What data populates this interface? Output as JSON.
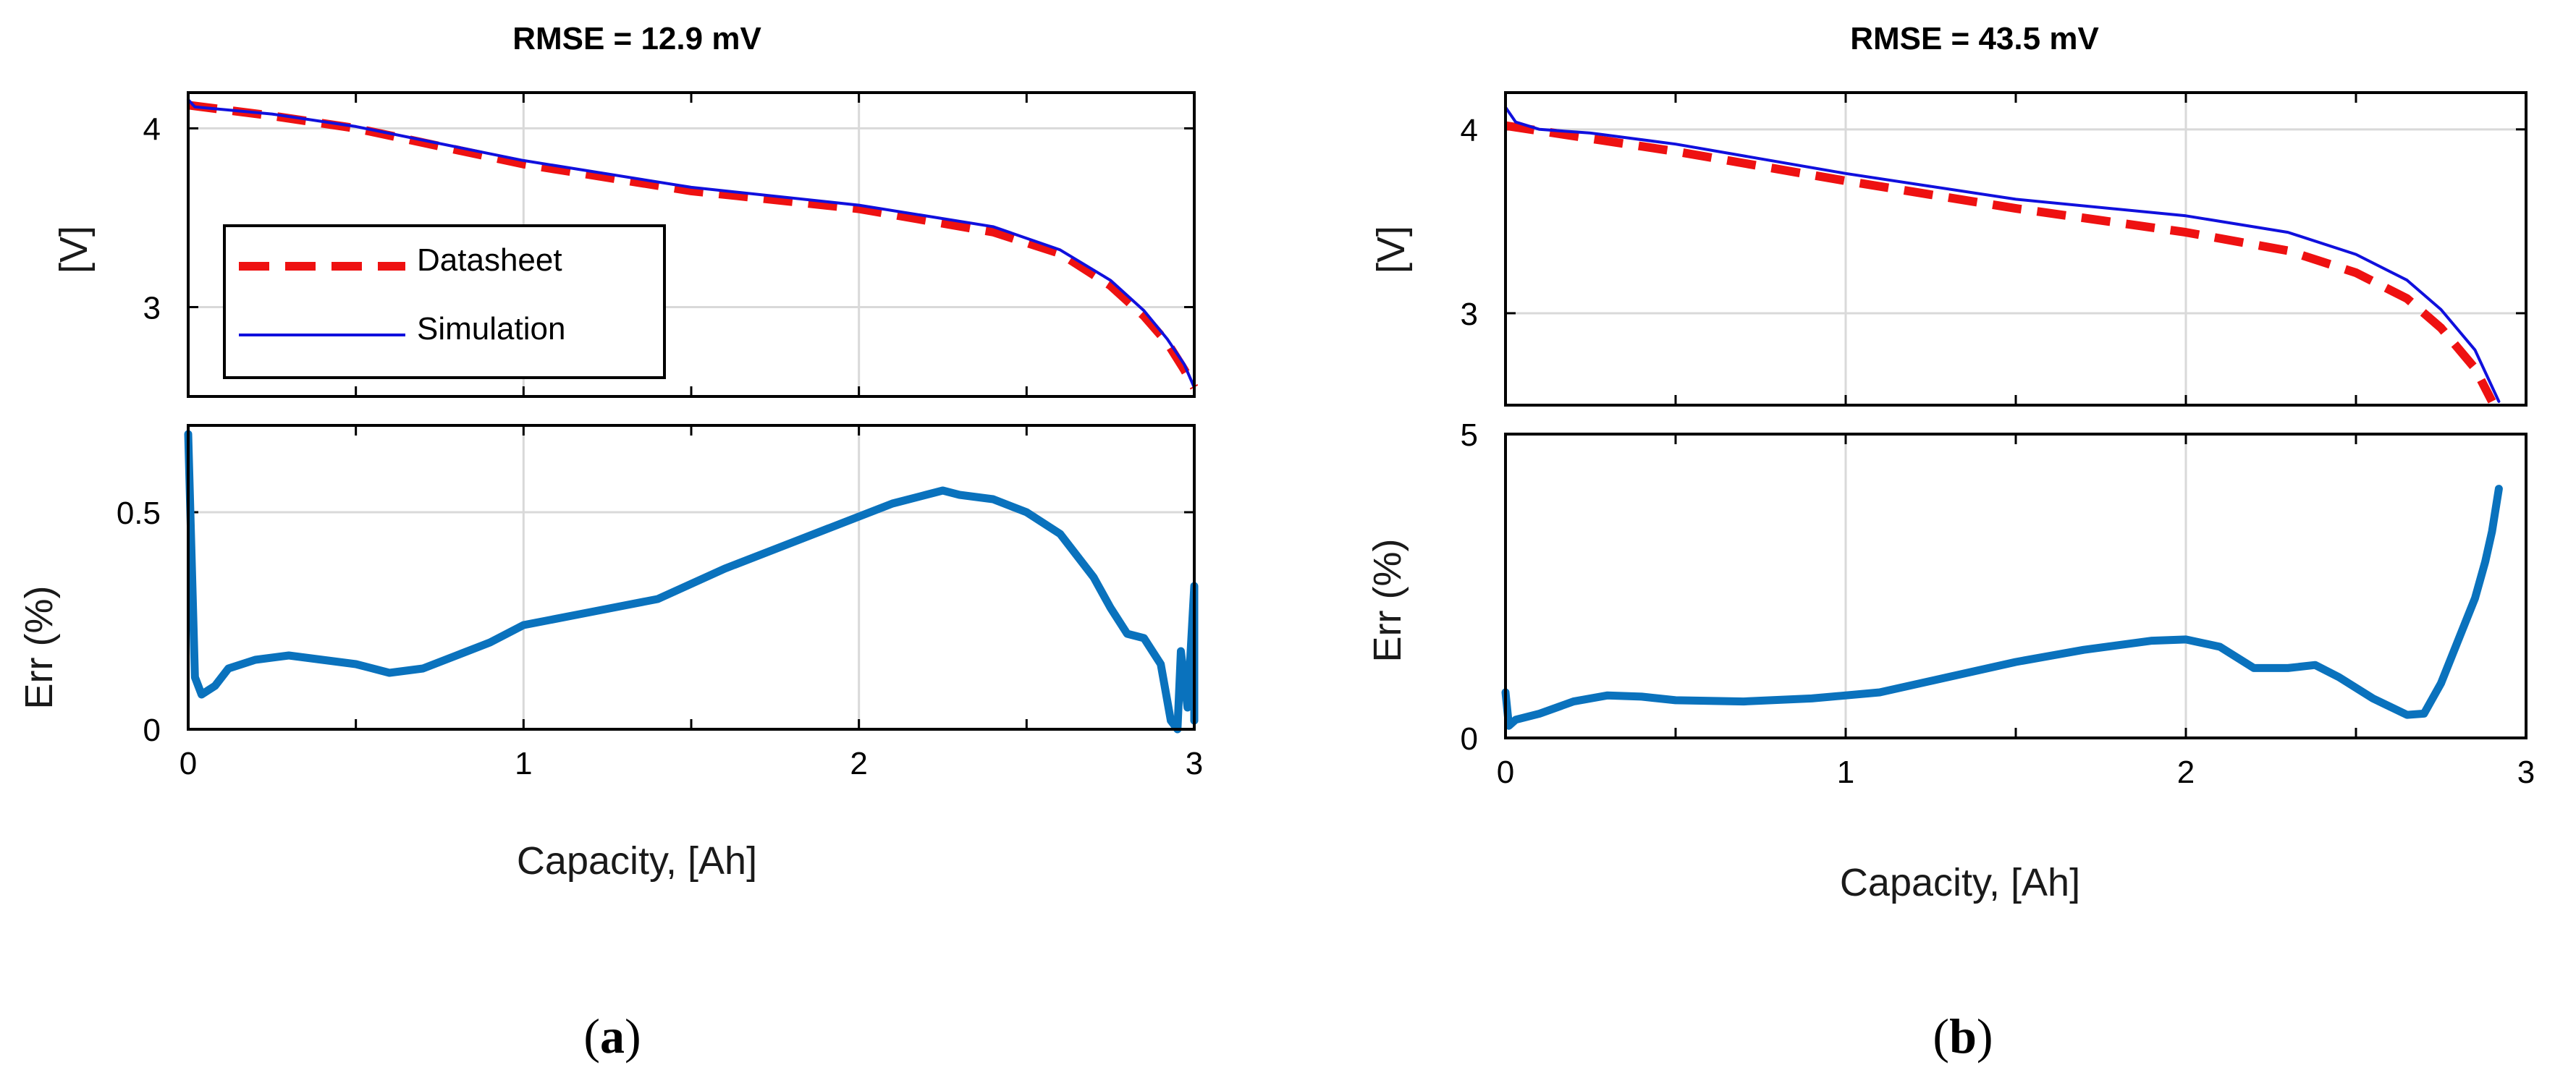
{
  "colors": {
    "datasheet": "#ee1111",
    "simulation": "#1010dd",
    "error": "#0a72bd",
    "grid": "#d9d9d9"
  },
  "chart_data": [
    {
      "panel": "a",
      "title": "RMSE = 12.9 mV",
      "caption": {
        "open": "(",
        "letter": "a",
        "close": ")"
      },
      "xlabel": "Capacity, [Ah]",
      "xlim": [
        0,
        3
      ],
      "xticks": [
        0,
        1,
        2,
        3
      ],
      "xtick_labels": [
        "0",
        "1",
        "2",
        "3"
      ],
      "voltage": {
        "type": "line",
        "ylabel": "[V]",
        "ylim": [
          2.5,
          4.2
        ],
        "yticks": [
          3,
          4
        ],
        "ytick_labels": [
          "3",
          "4"
        ],
        "legend": {
          "placement": "center-left",
          "entries": [
            "Datasheet",
            "Simulation"
          ]
        },
        "series": [
          {
            "name": "Datasheet",
            "style": "dashed",
            "x": [
              0,
              0.25,
              0.5,
              1.0,
              1.5,
              2.0,
              2.4,
              2.6,
              2.75,
              2.85,
              2.92,
              2.97,
              3.0
            ],
            "y": [
              4.13,
              4.07,
              4.0,
              3.8,
              3.65,
              3.55,
              3.42,
              3.3,
              3.12,
              2.95,
              2.8,
              2.65,
              2.55
            ]
          },
          {
            "name": "Simulation",
            "style": "solid",
            "x": [
              0,
              0.02,
              0.25,
              0.5,
              1.0,
              1.5,
              2.0,
              2.4,
              2.6,
              2.75,
              2.85,
              2.92,
              2.97,
              3.0
            ],
            "y": [
              4.16,
              4.12,
              4.08,
              4.01,
              3.82,
              3.67,
              3.57,
              3.45,
              3.32,
              3.15,
              2.98,
              2.82,
              2.68,
              2.55
            ]
          }
        ]
      },
      "error": {
        "type": "line",
        "ylabel": "Err (%)",
        "ylim": [
          0,
          0.7
        ],
        "yticks": [
          0,
          0.5
        ],
        "ytick_labels": [
          "0",
          "0.5"
        ],
        "series": [
          {
            "name": "Error",
            "x": [
              0,
              0.02,
              0.04,
              0.08,
              0.12,
              0.2,
              0.3,
              0.4,
              0.5,
              0.6,
              0.7,
              0.8,
              0.9,
              1.0,
              1.2,
              1.4,
              1.6,
              1.8,
              2.0,
              2.1,
              2.2,
              2.25,
              2.3,
              2.4,
              2.5,
              2.6,
              2.7,
              2.75,
              2.8,
              2.85,
              2.9,
              2.93,
              2.95,
              2.96,
              2.98,
              3.0,
              3.0
            ],
            "y": [
              0.68,
              0.12,
              0.08,
              0.1,
              0.14,
              0.16,
              0.17,
              0.16,
              0.15,
              0.13,
              0.14,
              0.17,
              0.2,
              0.24,
              0.27,
              0.3,
              0.37,
              0.43,
              0.49,
              0.52,
              0.54,
              0.55,
              0.54,
              0.53,
              0.5,
              0.45,
              0.35,
              0.28,
              0.22,
              0.21,
              0.15,
              0.02,
              0.0,
              0.18,
              0.05,
              0.33,
              0.02
            ]
          }
        ]
      }
    },
    {
      "panel": "b",
      "title": "RMSE = 43.5 mV",
      "caption": {
        "open": "(",
        "letter": "b",
        "close": ")"
      },
      "xlabel": "Capacity, [Ah]",
      "xlim": [
        0,
        3
      ],
      "xticks": [
        0,
        1,
        2,
        3
      ],
      "xtick_labels": [
        "0",
        "1",
        "2",
        "3"
      ],
      "voltage": {
        "type": "line",
        "ylabel": "[V]",
        "ylim": [
          2.5,
          4.2
        ],
        "yticks": [
          3,
          4
        ],
        "ytick_labels": [
          "3",
          "4"
        ],
        "series": [
          {
            "name": "Datasheet",
            "style": "dashed",
            "x": [
              0,
              0.25,
              0.5,
              1.0,
              1.5,
              2.0,
              2.3,
              2.5,
              2.65,
              2.75,
              2.85,
              2.9
            ],
            "y": [
              4.02,
              3.95,
              3.88,
              3.72,
              3.57,
              3.44,
              3.34,
              3.22,
              3.08,
              2.92,
              2.7,
              2.52
            ]
          },
          {
            "name": "Simulation",
            "style": "solid",
            "x": [
              0,
              0.03,
              0.1,
              0.25,
              0.5,
              1.0,
              1.5,
              2.0,
              2.3,
              2.5,
              2.65,
              2.75,
              2.85,
              2.92
            ],
            "y": [
              4.12,
              4.04,
              4.0,
              3.98,
              3.92,
              3.76,
              3.62,
              3.53,
              3.44,
              3.32,
              3.18,
              3.02,
              2.8,
              2.52
            ]
          }
        ]
      },
      "error": {
        "type": "line",
        "ylabel": "Err (%)",
        "ylim": [
          0,
          5
        ],
        "yticks": [
          0,
          5
        ],
        "ytick_labels": [
          "0",
          "5"
        ],
        "series": [
          {
            "name": "Error",
            "x": [
              0,
              0.01,
              0.03,
              0.1,
              0.2,
              0.3,
              0.4,
              0.5,
              0.7,
              0.9,
              1.1,
              1.3,
              1.5,
              1.7,
              1.9,
              2.0,
              2.1,
              2.2,
              2.3,
              2.38,
              2.45,
              2.55,
              2.65,
              2.7,
              2.75,
              2.8,
              2.85,
              2.88,
              2.9,
              2.92
            ],
            "y": [
              0.75,
              0.2,
              0.3,
              0.4,
              0.6,
              0.7,
              0.68,
              0.62,
              0.6,
              0.65,
              0.75,
              1.0,
              1.25,
              1.45,
              1.6,
              1.62,
              1.5,
              1.15,
              1.15,
              1.2,
              1.0,
              0.65,
              0.38,
              0.4,
              0.9,
              1.6,
              2.3,
              2.9,
              3.4,
              4.1
            ]
          }
        ]
      }
    }
  ]
}
